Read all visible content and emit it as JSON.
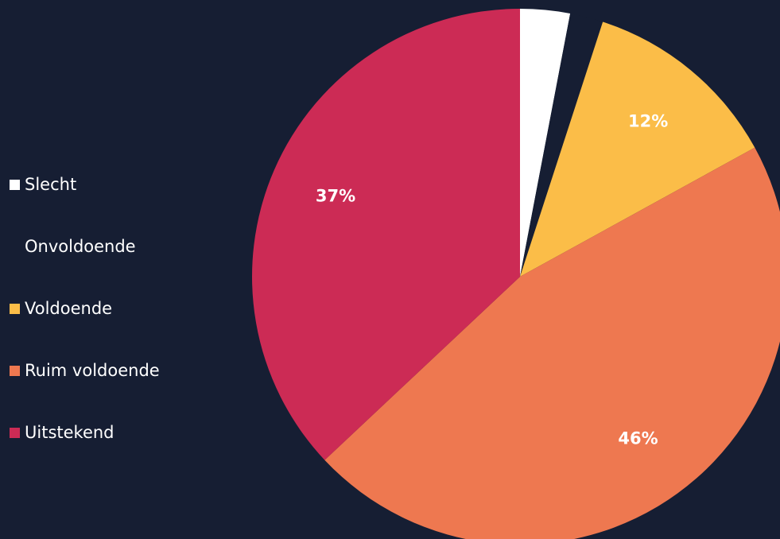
{
  "colors": {
    "background": "#161e33"
  },
  "chart_data": {
    "type": "pie",
    "slices": [
      {
        "label": "Slecht",
        "value": 3,
        "display": "3%",
        "color": "#ffffff"
      },
      {
        "label": "Onvoldoende",
        "value": 2,
        "display": "",
        "color": "#161e33"
      },
      {
        "label": "Voldoende",
        "value": 12,
        "display": "12%",
        "color": "#fbbd48"
      },
      {
        "label": "Ruim voldoende",
        "value": 46,
        "display": "46%",
        "color": "#ee7850"
      },
      {
        "label": "Uitstekend",
        "value": 37,
        "display": "37%",
        "color": "#cc2b55"
      }
    ],
    "legend_position": "left"
  }
}
